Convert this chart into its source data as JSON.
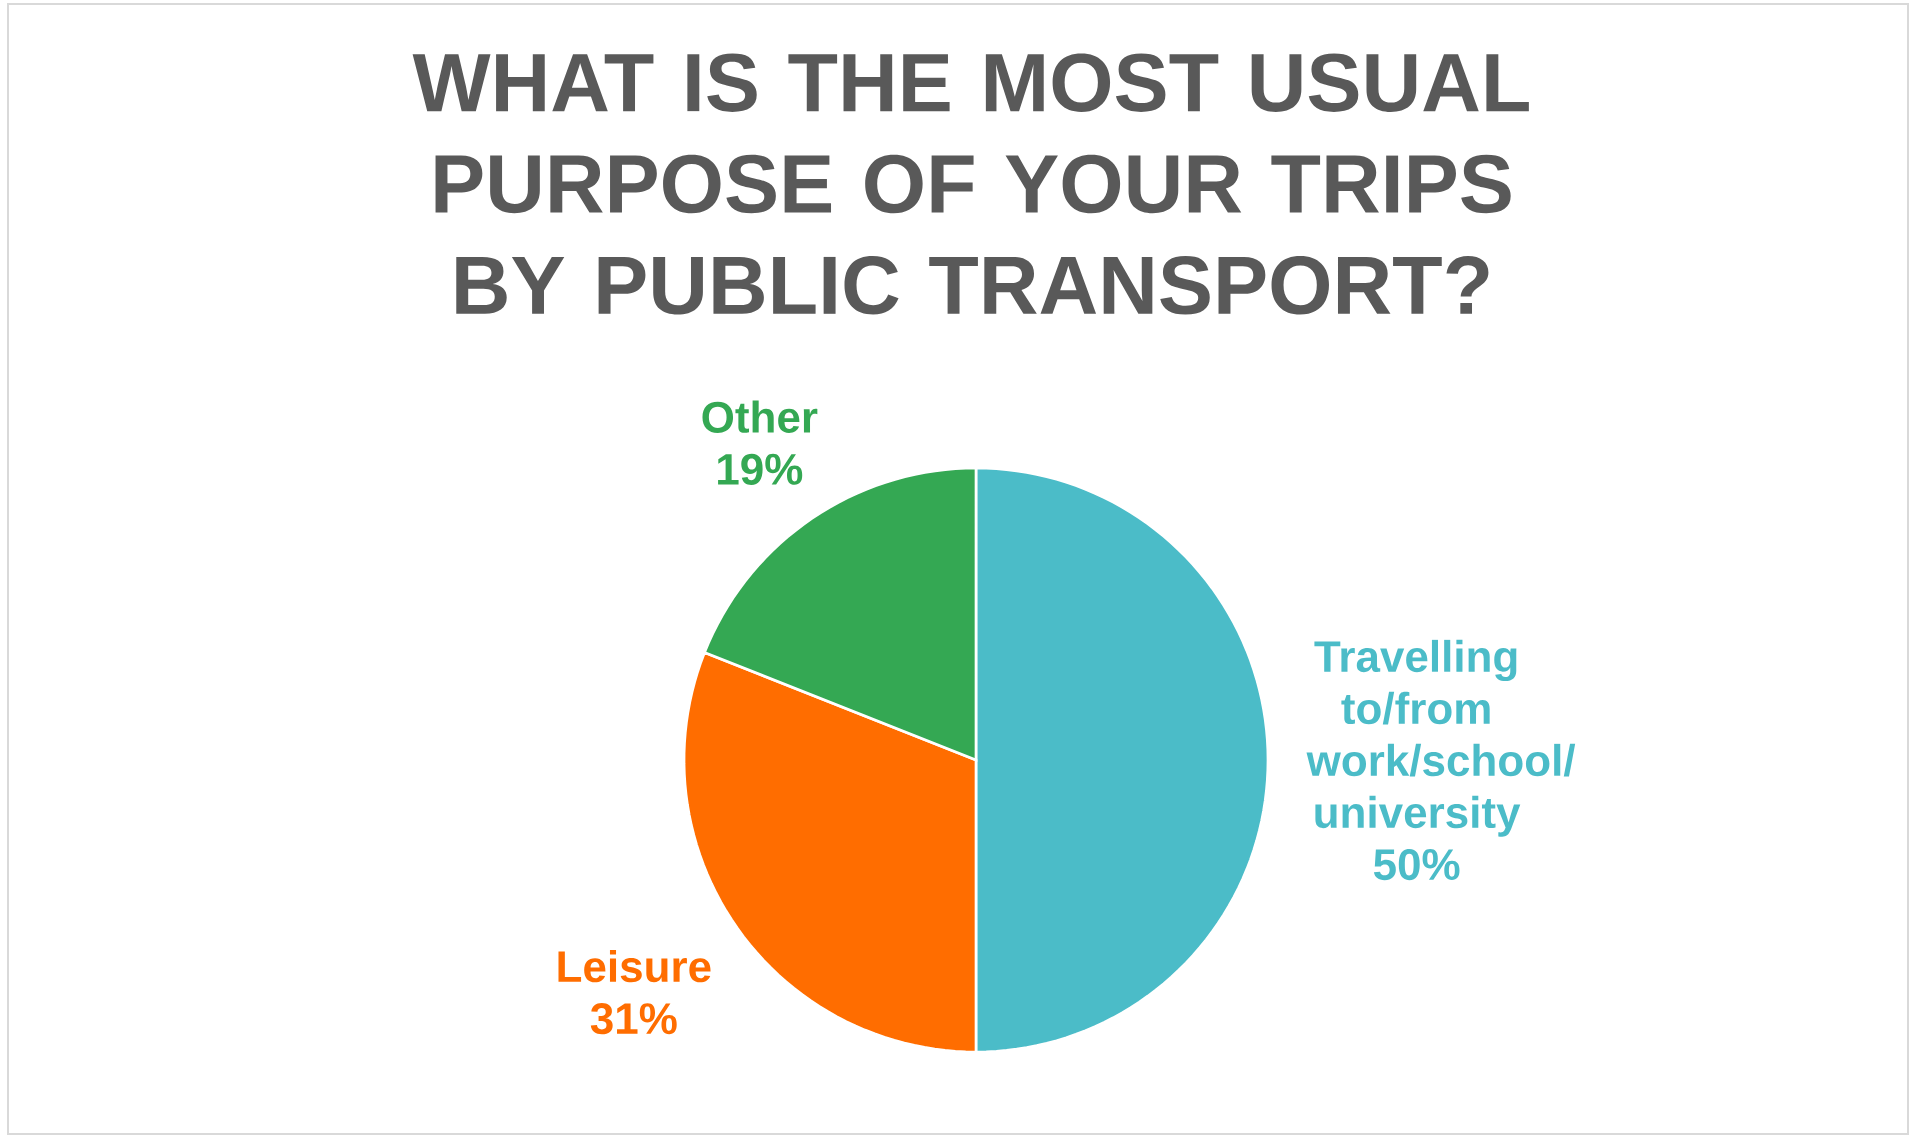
{
  "chart_data": {
    "type": "pie",
    "title": "WHAT IS THE MOST USUAL PURPOSE OF YOUR TRIPS BY PUBLIC TRANSPORT?",
    "categories": [
      "Travelling to/from work/school/ university",
      "Leisure",
      "Other"
    ],
    "values": [
      50,
      31,
      19
    ],
    "colors": [
      "#4bbcc8",
      "#ff6d00",
      "#34a853"
    ],
    "value_labels": [
      "50%",
      "31%",
      "19%"
    ]
  }
}
